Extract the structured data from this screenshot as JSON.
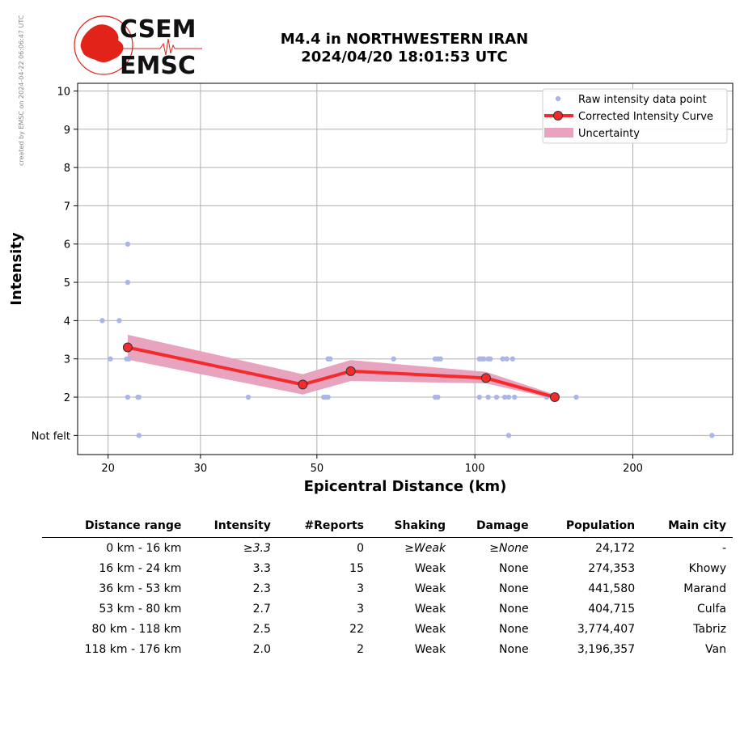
{
  "watermark": "created by EMSC on 2024-04-22 06:06:47 UTC",
  "logo": {
    "top": "CSEM",
    "bottom": "EMSC"
  },
  "header": {
    "line1": "M4.4 in NORTHWESTERN IRAN",
    "line2": "2024/04/20 18:01:53 UTC"
  },
  "chart_data": {
    "type": "scatter",
    "xlabel": "Epicentral Distance (km)",
    "ylabel": "Intensity",
    "x_scale": "log",
    "xlim": [
      17.5,
      310
    ],
    "ylim": [
      0.5,
      10.2
    ],
    "x_ticks": [
      20,
      30,
      50,
      100,
      200
    ],
    "y_ticks": [
      {
        "value": 1,
        "label": "Not felt"
      },
      {
        "value": 2,
        "label": "2"
      },
      {
        "value": 3,
        "label": "3"
      },
      {
        "value": 4,
        "label": "4"
      },
      {
        "value": 5,
        "label": "5"
      },
      {
        "value": 6,
        "label": "6"
      },
      {
        "value": 7,
        "label": "7"
      },
      {
        "value": 8,
        "label": "8"
      },
      {
        "value": 9,
        "label": "9"
      },
      {
        "value": 10,
        "label": "10"
      }
    ],
    "grid": true,
    "legend": "top-right",
    "legend_entries": [
      "Raw intensity data point",
      "Corrected Intensity Curve",
      "Uncertainty"
    ],
    "colors": {
      "raw": "#aab6e8",
      "curve": "#f52a2a",
      "marker_edge": "#333333",
      "band": "#e8a3bf"
    },
    "raw_points": [
      [
        19.5,
        4
      ],
      [
        21.0,
        4
      ],
      [
        20.2,
        3
      ],
      [
        21.7,
        3
      ],
      [
        21.9,
        3
      ],
      [
        21.8,
        6
      ],
      [
        21.8,
        5
      ],
      [
        21.8,
        2
      ],
      [
        22.8,
        2
      ],
      [
        22.9,
        2
      ],
      [
        22.9,
        1
      ],
      [
        37,
        2
      ],
      [
        51.5,
        2
      ],
      [
        52,
        2
      ],
      [
        52.5,
        2
      ],
      [
        52.5,
        3
      ],
      [
        53,
        3
      ],
      [
        70,
        3
      ],
      [
        84,
        3
      ],
      [
        85,
        3
      ],
      [
        86,
        3
      ],
      [
        84,
        2
      ],
      [
        85,
        2
      ],
      [
        102,
        3
      ],
      [
        103,
        3
      ],
      [
        104,
        3
      ],
      [
        106,
        3
      ],
      [
        107,
        3
      ],
      [
        102,
        2
      ],
      [
        106,
        2
      ],
      [
        110,
        2
      ],
      [
        113,
        3
      ],
      [
        115,
        3
      ],
      [
        118,
        3
      ],
      [
        114,
        2
      ],
      [
        116,
        2
      ],
      [
        119,
        2
      ],
      [
        116,
        1
      ],
      [
        137,
        2
      ],
      [
        156,
        2
      ],
      [
        283,
        1
      ]
    ],
    "curve": {
      "x": [
        21.8,
        47,
        58,
        105,
        142
      ],
      "y": [
        3.3,
        2.33,
        2.68,
        2.5,
        2.0
      ]
    },
    "uncertainty": {
      "x": [
        21.8,
        47,
        58,
        105,
        142
      ],
      "upper": [
        3.63,
        2.6,
        2.97,
        2.66,
        2.07
      ],
      "lower": [
        2.98,
        2.07,
        2.42,
        2.36,
        1.95
      ]
    }
  },
  "table": {
    "headers": [
      "Distance range",
      "Intensity",
      "#Reports",
      "Shaking",
      "Damage",
      "Population",
      "Main city"
    ],
    "rows": [
      [
        "0 km -   16 km",
        "≥3.3",
        "0",
        "≥Weak",
        "≥None",
        "24,172",
        "-"
      ],
      [
        "16 km -   24 km",
        "3.3",
        "15",
        "Weak",
        "None",
        "274,353",
        "Khowy"
      ],
      [
        "36 km -   53 km",
        "2.3",
        "3",
        "Weak",
        "None",
        "441,580",
        "Marand"
      ],
      [
        "53 km -   80 km",
        "2.7",
        "3",
        "Weak",
        "None",
        "404,715",
        "Culfa"
      ],
      [
        "80 km -  118 km",
        "2.5",
        "22",
        "Weak",
        "None",
        "3,774,407",
        "Tabriz"
      ],
      [
        "118 km -  176 km",
        "2.0",
        "2",
        "Weak",
        "None",
        "3,196,357",
        "Van"
      ]
    ]
  }
}
